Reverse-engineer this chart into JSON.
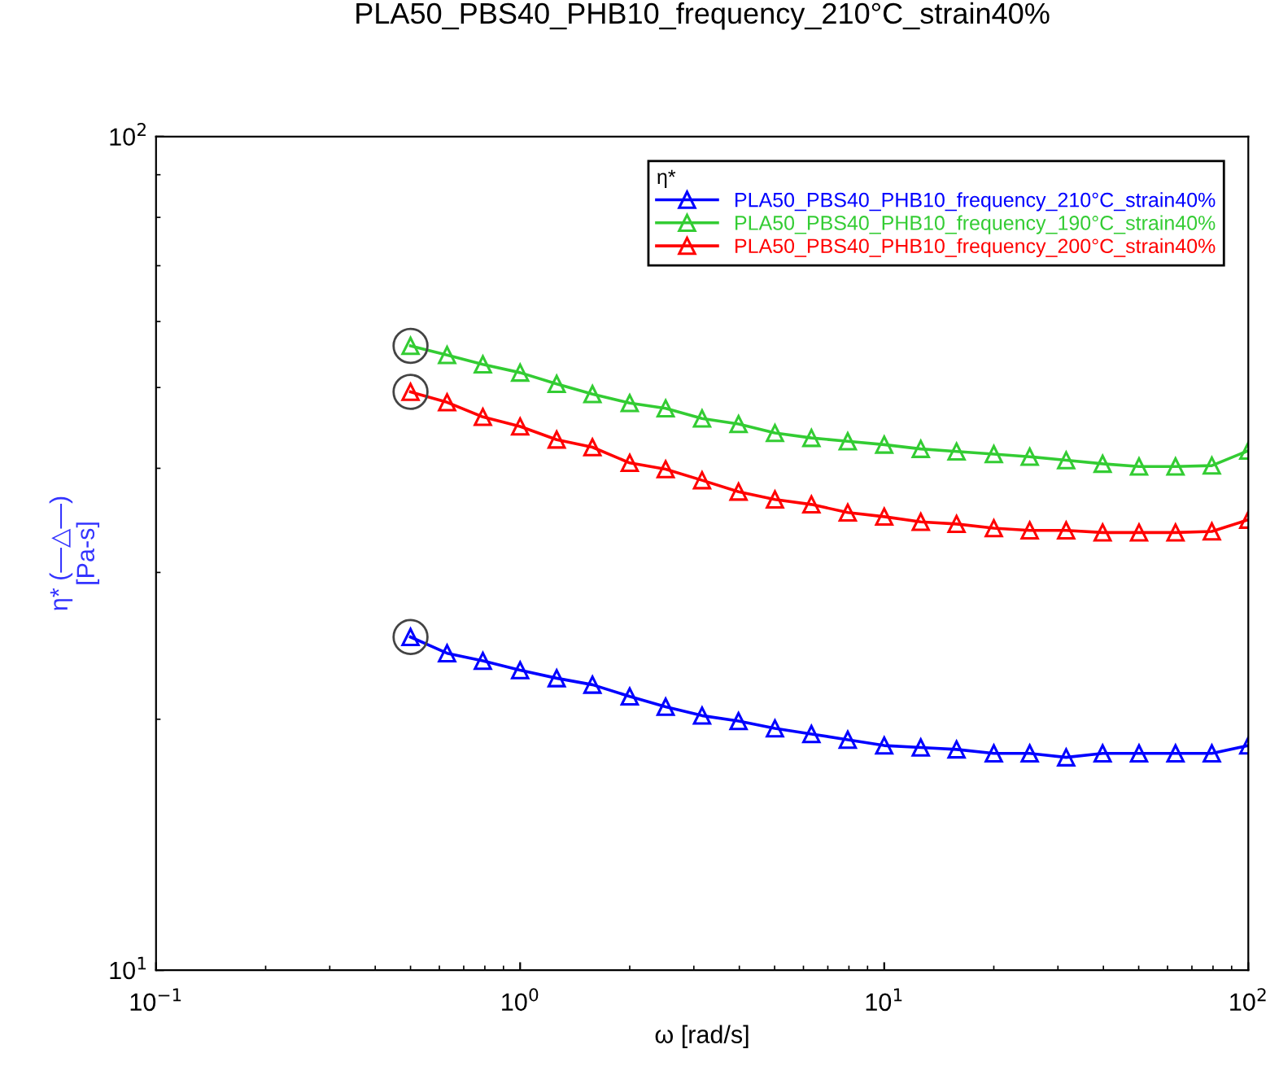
{
  "chart_data": {
    "type": "line",
    "title": "PLA50_PBS40_PHB10_frequency_210°C_strain40%",
    "xlabel": "ω [rad/s]",
    "ylabel": "η* (—△—)\n[Pa-s]",
    "legend_title": "η*",
    "x": [
      0.5,
      0.63,
      0.79,
      1,
      1.26,
      1.58,
      2,
      2.51,
      3.16,
      3.98,
      5.01,
      6.31,
      7.94,
      10,
      12.6,
      15.8,
      20,
      25.1,
      31.6,
      39.8,
      50.1,
      63.1,
      79.4,
      100
    ],
    "series": [
      {
        "name": "PLA50_PBS40_PHB10_frequency_210°C_strain40%",
        "color": "#0000ff",
        "values": [
          25.1,
          24.0,
          23.5,
          22.9,
          22.4,
          22.0,
          21.3,
          20.7,
          20.2,
          19.9,
          19.5,
          19.2,
          18.9,
          18.6,
          18.5,
          18.4,
          18.2,
          18.2,
          18.0,
          18.2,
          18.2,
          18.2,
          18.2,
          18.6
        ]
      },
      {
        "name": "PLA50_PBS40_PHB10_frequency_190°C_strain40%",
        "color": "#33cc33",
        "values": [
          56.1,
          54.7,
          53.3,
          52.1,
          50.5,
          49.1,
          47.9,
          47.2,
          45.9,
          45.2,
          44.1,
          43.5,
          43.1,
          42.7,
          42.2,
          41.9,
          41.6,
          41.3,
          40.9,
          40.5,
          40.2,
          40.2,
          40.3,
          42.0
        ]
      },
      {
        "name": "PLA50_PBS40_PHB10_frequency_200°C_strain40%",
        "color": "#ff0000",
        "values": [
          49.4,
          48.0,
          46.1,
          44.9,
          43.3,
          42.4,
          40.6,
          39.9,
          38.7,
          37.5,
          36.7,
          36.2,
          35.4,
          35.0,
          34.5,
          34.3,
          33.9,
          33.7,
          33.7,
          33.5,
          33.5,
          33.5,
          33.6,
          34.7
        ]
      }
    ],
    "log": "xy",
    "xlim": [
      0.1,
      100
    ],
    "ylim": [
      10,
      100
    ],
    "xticks": [
      {
        "value": 0.1,
        "label": "10$^{−1}$"
      },
      {
        "value": 1,
        "label": "10$^{0}$"
      },
      {
        "value": 10,
        "label": "10$^{1}$"
      },
      {
        "value": 100,
        "label": "10$^{2}$"
      }
    ],
    "yticks": [
      {
        "value": 10,
        "label": "10$^{1}$"
      },
      {
        "value": 100,
        "label": "10$^{2}$"
      }
    ],
    "marker": "triangle",
    "line_style": "solid",
    "grid": false,
    "legend": "top right"
  }
}
